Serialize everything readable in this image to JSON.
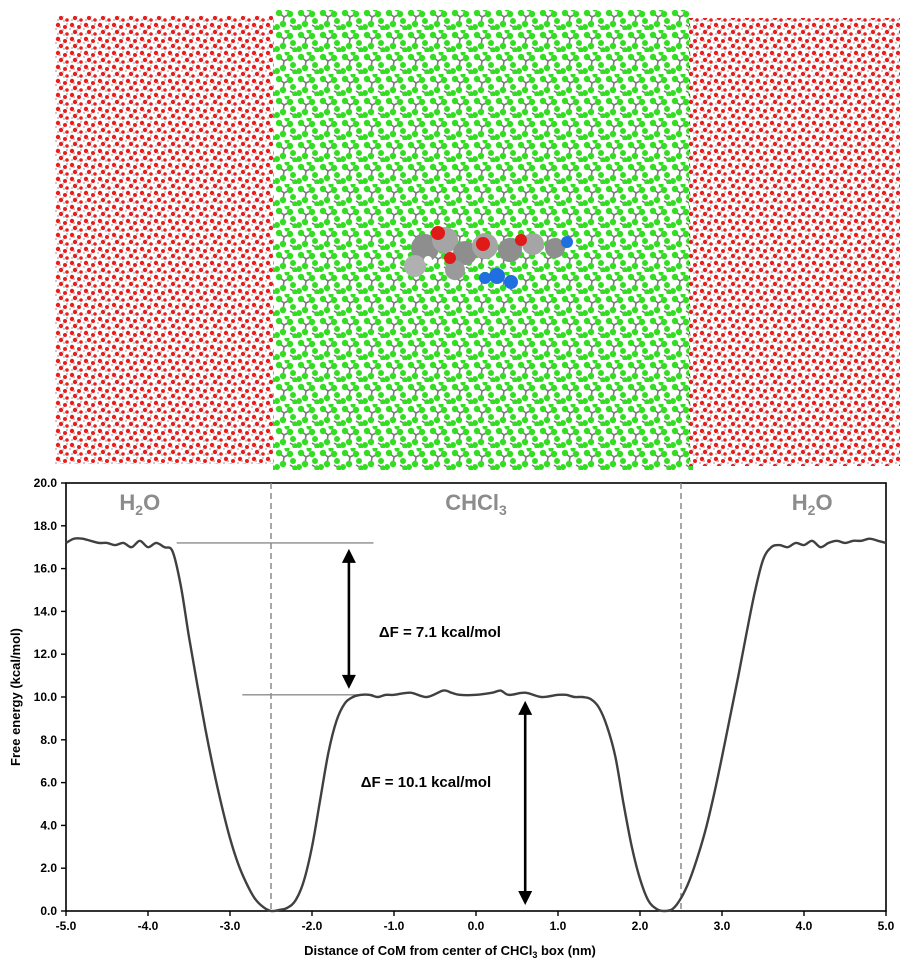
{
  "snapshot": {
    "description_none": "",
    "regions": [
      "water-slab-left",
      "chloroform-slab",
      "water-slab-right"
    ],
    "colors": {
      "oxygen": "#ee1c1c",
      "hydrogen": "#b9b9b9",
      "chlorine": "#33dd22",
      "carbon": "#7a7a7a",
      "nitrogen": "#1f6fe0"
    }
  },
  "chart_data": {
    "type": "line",
    "xlabel": "Distance of CoM from center of CHCl",
    "xlabel_sub": "3",
    "xlabel_tail": " box (nm)",
    "ylabel": "Free energy (kcal/mol)",
    "xlim": [
      -5.0,
      5.0
    ],
    "ylim": [
      0.0,
      20.0
    ],
    "x_ticks": [
      "-5.0",
      "-4.0",
      "-3.0",
      "-2.0",
      "-1.0",
      "0.0",
      "1.0",
      "2.0",
      "3.0",
      "4.0",
      "5.0"
    ],
    "y_ticks": [
      "0.0",
      "2.0",
      "4.0",
      "6.0",
      "8.0",
      "10.0",
      "12.0",
      "14.0",
      "16.0",
      "18.0",
      "20.0"
    ],
    "regions": [
      {
        "label": "H",
        "sub": "2",
        "tail": "O",
        "x": -4.1
      },
      {
        "label": "CHCl",
        "sub": "3",
        "tail": "",
        "x": 0.0
      },
      {
        "label": "H",
        "sub": "2",
        "tail": "O",
        "x": 4.1
      }
    ],
    "interfaces": [
      -2.5,
      2.5
    ],
    "annotations": [
      {
        "text": "ΔF = 7.1 kcal/mol",
        "x": -1.55,
        "y": 12.8,
        "arrow_from": 17.2,
        "arrow_to": 10.1,
        "arrow_x": -1.55
      },
      {
        "text": "ΔF = 10.1 kcal/mol",
        "x": -1.65,
        "y": 5.8,
        "arrow_from": 10.1,
        "arrow_to": 0.0,
        "arrow_x": 0.6
      }
    ],
    "ref_lines": [
      {
        "y": 17.2,
        "x_from": -3.65,
        "x_to": -1.25
      },
      {
        "y": 10.1,
        "x_from": -2.85,
        "x_to": -1.25
      }
    ],
    "series": [
      {
        "x": [
          -5.0,
          -4.9,
          -4.8,
          -4.7,
          -4.6,
          -4.5,
          -4.4,
          -4.3,
          -4.2,
          -4.1,
          -4.0,
          -3.9,
          -3.8,
          -3.7,
          -3.6,
          -3.5,
          -3.4,
          -3.3,
          -3.2,
          -3.1,
          -3.0,
          -2.9,
          -2.8,
          -2.7,
          -2.6,
          -2.5,
          -2.4,
          -2.3,
          -2.2,
          -2.1,
          -2.0,
          -1.9,
          -1.8,
          -1.7,
          -1.6,
          -1.5,
          -1.4,
          -1.3,
          -1.2,
          -1.1,
          -1.0,
          -0.8,
          -0.6,
          -0.4,
          -0.3,
          -0.2,
          0.0,
          0.2,
          0.3,
          0.4,
          0.6,
          0.8,
          1.0,
          1.1,
          1.2,
          1.3,
          1.4,
          1.5,
          1.6,
          1.7,
          1.8,
          1.9,
          2.0,
          2.1,
          2.2,
          2.3,
          2.4,
          2.5,
          2.6,
          2.7,
          2.8,
          2.9,
          3.0,
          3.1,
          3.2,
          3.3,
          3.4,
          3.5,
          3.6,
          3.7,
          3.8,
          3.9,
          4.0,
          4.1,
          4.2,
          4.3,
          4.4,
          4.5,
          4.6,
          4.7,
          4.8,
          4.9,
          5.0
        ],
        "y": [
          17.2,
          17.4,
          17.4,
          17.3,
          17.2,
          17.2,
          17.1,
          17.2,
          17.0,
          17.3,
          17.0,
          17.2,
          17.0,
          16.8,
          15.2,
          12.8,
          10.6,
          8.5,
          6.6,
          4.9,
          3.4,
          2.2,
          1.3,
          0.6,
          0.2,
          0.0,
          0.05,
          0.15,
          0.5,
          1.4,
          3.0,
          5.2,
          7.4,
          8.9,
          9.7,
          10.0,
          10.1,
          10.1,
          10.0,
          10.1,
          10.1,
          10.2,
          10.0,
          10.3,
          10.2,
          10.1,
          10.1,
          10.2,
          10.3,
          10.1,
          10.2,
          10.0,
          10.1,
          10.1,
          10.0,
          10.0,
          9.9,
          9.5,
          8.6,
          7.2,
          5.0,
          3.0,
          1.5,
          0.5,
          0.1,
          0.0,
          0.1,
          0.6,
          1.4,
          2.5,
          3.8,
          5.4,
          7.2,
          9.1,
          11.0,
          13.0,
          14.9,
          16.4,
          17.0,
          17.1,
          17.0,
          17.2,
          17.1,
          17.3,
          17.0,
          17.2,
          17.3,
          17.2,
          17.3,
          17.3,
          17.4,
          17.3,
          17.2
        ]
      }
    ]
  }
}
